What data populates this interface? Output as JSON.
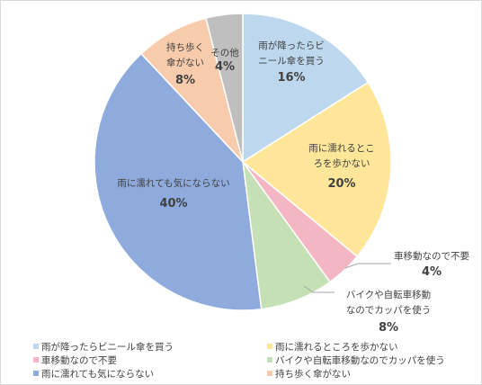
{
  "chart_data": {
    "type": "pie",
    "slices": [
      {
        "label": "雨が降ったらビニール傘を買う",
        "value": 16,
        "display": "16%",
        "color": "#BDD7EE",
        "label_lines": [
          "雨が降ったらビ",
          "ニール傘を買う"
        ]
      },
      {
        "label": "雨に濡れるところを歩かない",
        "value": 20,
        "display": "20%",
        "color": "#FFE699",
        "label_lines": [
          "雨に濡れるとこ",
          "ろを歩かない"
        ]
      },
      {
        "label": "車移動なので不要",
        "value": 4,
        "display": "4%",
        "color": "#F4B6C2",
        "label_lines": [
          "車移動なので不要"
        ]
      },
      {
        "label": "バイクや自転車移動なのでカッパを使う",
        "value": 8,
        "display": "8%",
        "color": "#C5E0B4",
        "label_lines": [
          "バイクや自転車移動",
          "なのでカッパを使う"
        ]
      },
      {
        "label": "雨に濡れても気にならない",
        "value": 40,
        "display": "40%",
        "color": "#8FAADC",
        "label_lines": [
          "雨に濡れても気にならない"
        ]
      },
      {
        "label": "持ち歩く傘がない",
        "value": 8,
        "display": "8%",
        "color": "#F8CBAD",
        "label_lines": [
          "持ち歩く",
          "傘がない"
        ]
      },
      {
        "label": "その他",
        "value": 4,
        "display": "4%",
        "color": "#BFBFBF",
        "label_lines": [
          "その他"
        ]
      }
    ],
    "legend_placement": "bottom",
    "legend_order": [
      0,
      1,
      2,
      3,
      4,
      5
    ],
    "leader_color": "#A6A6A6"
  }
}
